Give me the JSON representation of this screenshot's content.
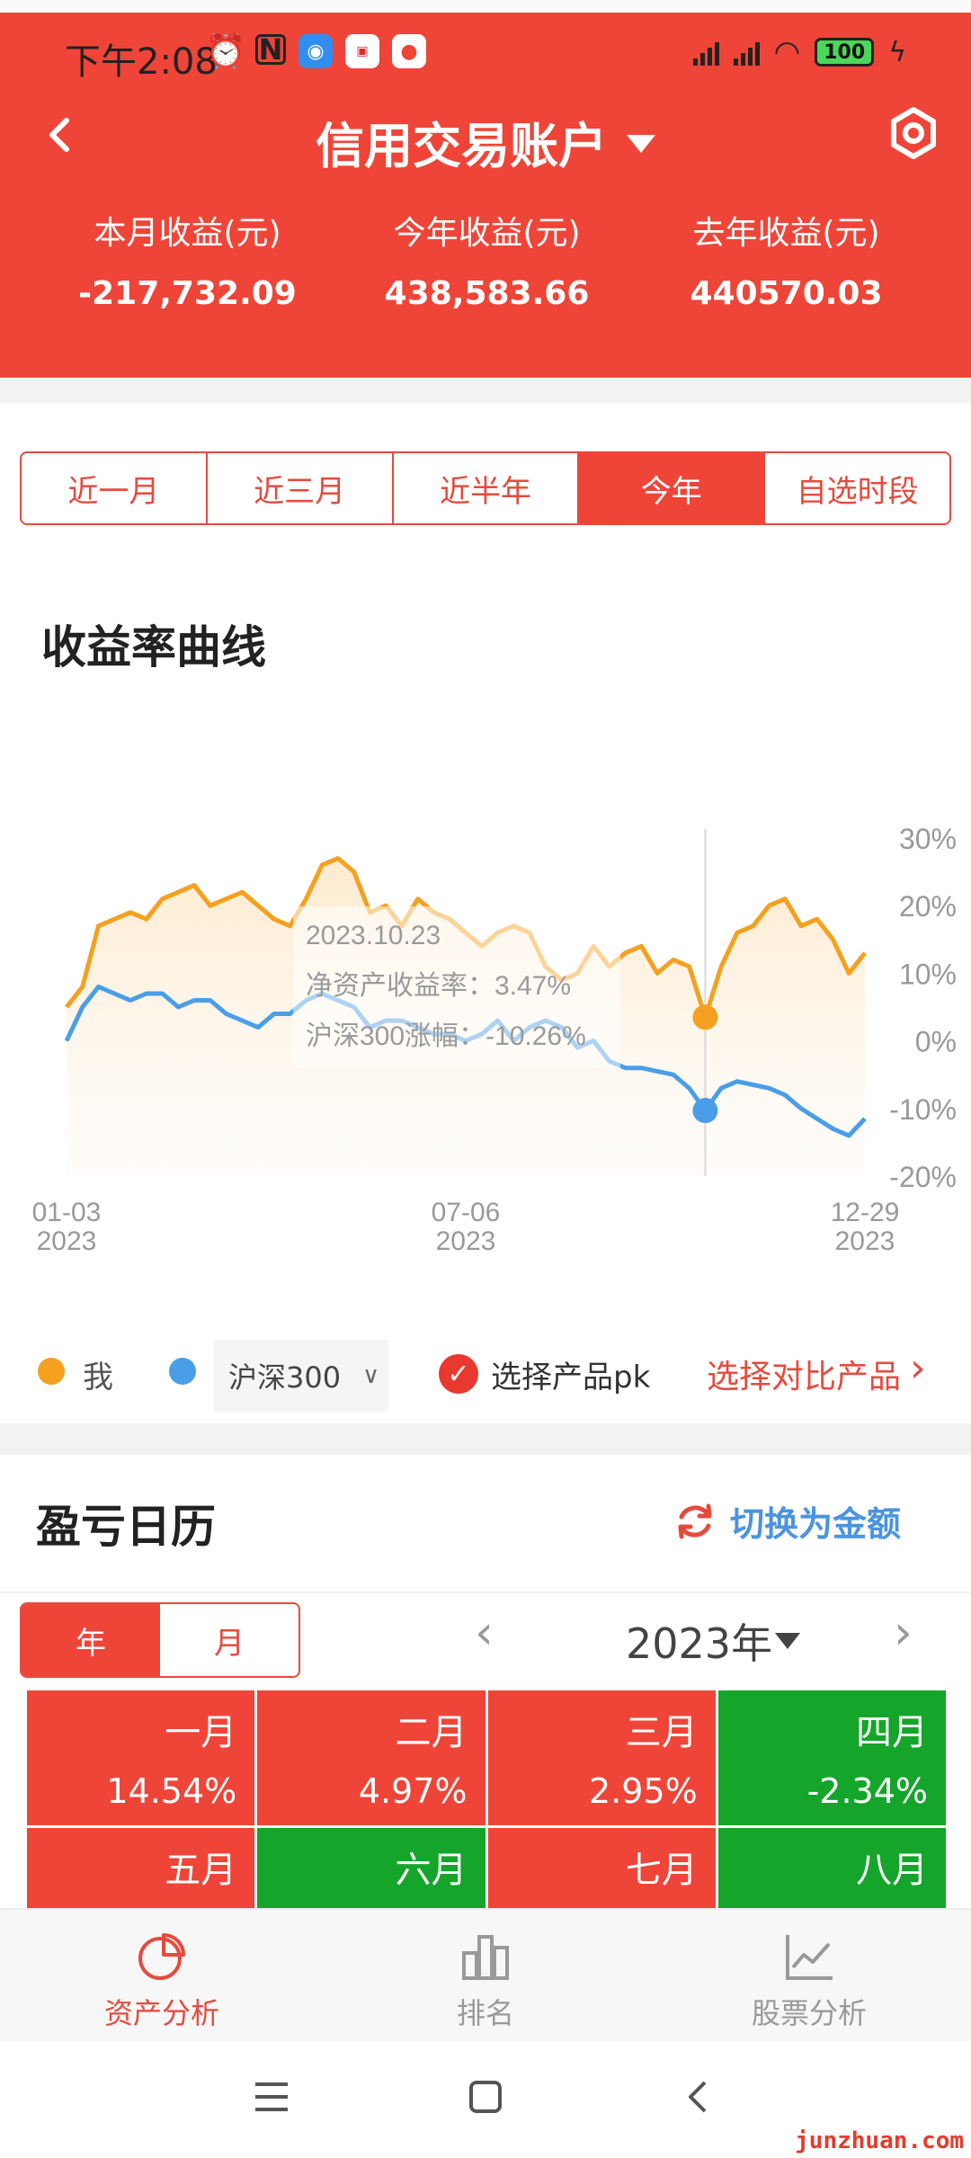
{
  "status": {
    "time": "下午2:08",
    "battery": "100"
  },
  "header": {
    "title": "信用交易账户",
    "incomes": [
      {
        "label": "本月收益(元)",
        "value": "-217,732.09"
      },
      {
        "label": "今年收益(元)",
        "value": "438,583.66"
      },
      {
        "label": "去年收益(元)",
        "value": "440570.03"
      }
    ]
  },
  "period_tabs": [
    "近一月",
    "近三月",
    "近半年",
    "今年",
    "自选时段"
  ],
  "active_tab": "今年",
  "chart_section_title": "收益率曲线",
  "chart_data": {
    "type": "line",
    "y_ticks": [
      "30%",
      "20%",
      "10%",
      "0%",
      "-10%",
      "-20%"
    ],
    "ylim": [
      -20,
      30
    ],
    "x_ticks": [
      {
        "date": "01-03",
        "year": "2023"
      },
      {
        "date": "07-06",
        "year": "2023"
      },
      {
        "date": "12-29",
        "year": "2023"
      }
    ],
    "x_index_range": [
      0,
      100
    ],
    "tooltip": {
      "date": "2023.10.23",
      "line1": "净资产收益率：3.47%",
      "line2": "沪深300涨幅：-10.26%",
      "x_index": 80
    },
    "series": [
      {
        "name": "我",
        "color": "#f5a01f",
        "x": [
          0,
          2,
          4,
          6,
          8,
          10,
          12,
          14,
          16,
          18,
          20,
          22,
          24,
          26,
          28,
          30,
          32,
          34,
          36,
          38,
          40,
          42,
          44,
          46,
          48,
          50,
          52,
          54,
          56,
          58,
          60,
          62,
          64,
          66,
          68,
          70,
          72,
          74,
          76,
          78,
          80,
          82,
          84,
          86,
          88,
          90,
          92,
          94,
          96,
          98,
          100
        ],
        "values": [
          5,
          8,
          17,
          18,
          19,
          18,
          21,
          22,
          23,
          20,
          21,
          22,
          20,
          18,
          17,
          21,
          26,
          27,
          25,
          19,
          20,
          17,
          21,
          19,
          18,
          16,
          14,
          16,
          17,
          16,
          11,
          9,
          10,
          14,
          11,
          13,
          14,
          10,
          12,
          11,
          3.5,
          11,
          16,
          17,
          20,
          21,
          17,
          18,
          15,
          10,
          13
        ]
      },
      {
        "name": "沪深300",
        "color": "#4a9ee8",
        "x": [
          0,
          2,
          4,
          6,
          8,
          10,
          12,
          14,
          16,
          18,
          20,
          22,
          24,
          26,
          28,
          30,
          32,
          34,
          36,
          38,
          40,
          42,
          44,
          46,
          48,
          50,
          52,
          54,
          56,
          58,
          60,
          62,
          64,
          66,
          68,
          70,
          72,
          74,
          76,
          78,
          80,
          82,
          84,
          86,
          88,
          90,
          92,
          94,
          96,
          98,
          100
        ],
        "values": [
          0,
          5,
          8,
          7,
          6,
          7,
          7,
          5,
          6,
          6,
          4,
          3,
          2,
          4,
          4,
          6,
          7,
          6,
          5,
          2,
          3,
          3,
          2,
          1,
          1,
          0,
          1,
          3,
          0,
          2,
          3,
          2,
          -1,
          0,
          -3,
          -4,
          -4,
          -4.5,
          -5,
          -7,
          -10.3,
          -7,
          -6,
          -6.5,
          -7,
          -8,
          -10,
          -11.5,
          -13,
          -14,
          -11.5
        ]
      }
    ]
  },
  "legend": {
    "me_label": "我",
    "index_label": "沪深300",
    "pk_label": "选择产品pk",
    "compare_label": "选择对比产品",
    "compare_arrow": "›"
  },
  "calendar": {
    "title": "盈亏日历",
    "switch_label": "切换为金额",
    "seg": [
      "年",
      "月"
    ],
    "year": "2023年",
    "prev": "‹",
    "next": "›",
    "months": [
      {
        "name": "一月",
        "pct": "14.54%",
        "tone": "red"
      },
      {
        "name": "二月",
        "pct": "4.97%",
        "tone": "red"
      },
      {
        "name": "三月",
        "pct": "2.95%",
        "tone": "red"
      },
      {
        "name": "四月",
        "pct": "-2.34%",
        "tone": "green"
      },
      {
        "name": "五月",
        "pct": "",
        "tone": "red"
      },
      {
        "name": "六月",
        "pct": "",
        "tone": "green"
      },
      {
        "name": "七月",
        "pct": "",
        "tone": "red"
      },
      {
        "name": "八月",
        "pct": "",
        "tone": "green"
      }
    ]
  },
  "bottom_nav": [
    {
      "label": "资产分析",
      "active": true
    },
    {
      "label": "排名",
      "active": false
    },
    {
      "label": "股票分析",
      "active": false
    }
  ],
  "watermark": "junzhuan.com"
}
